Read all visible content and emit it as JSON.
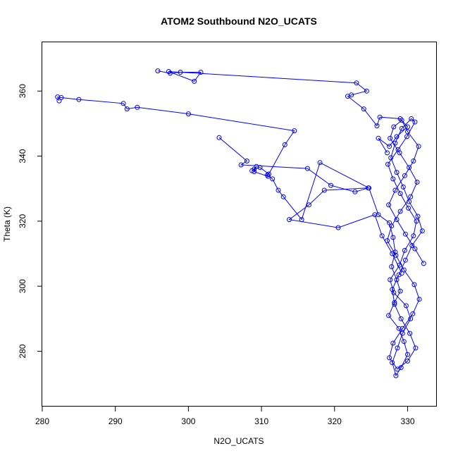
{
  "chart_data": {
    "type": "line",
    "title": "ATOM2 Southbound N2O_UCATS",
    "xlabel": "N2O_UCATS",
    "ylabel": "Theta (K)",
    "xlim": [
      280,
      334
    ],
    "ylim": [
      263,
      375
    ],
    "xticks": [
      280,
      290,
      300,
      310,
      320,
      330
    ],
    "yticks": [
      280,
      300,
      320,
      340,
      360
    ],
    "grid": false,
    "series_color": "#0000ff",
    "marker": "open-circle",
    "series": [
      {
        "x": [
          282.3,
          282.1,
          282.6,
          285.0,
          291.1,
          291.6,
          293.0,
          300.0,
          314.5,
          313.2,
          311.0,
          309.8,
          309.0,
          308.7,
          309.3,
          309.0,
          310.9,
          310.8,
          311.5,
          312.3,
          313.0,
          315.5,
          318.0,
          324.7,
          326.0,
          327.5,
          328.0,
          328.3,
          327.8,
          328.5,
          329.0,
          328.2,
          327.4,
          328.8,
          329.5,
          330.0,
          329.1,
          328.4,
          327.9,
          328.6,
          329.3,
          330.4,
          329.8,
          328.1,
          327.6,
          328.9,
          329.6,
          330.8,
          331.2,
          330.1,
          329.0,
          328.0,
          327.3,
          328.7,
          329.9,
          331.0,
          330.5,
          329.2,
          328.3,
          327.7,
          328.5,
          329.4,
          330.2,
          331.4,
          332.0,
          330.6,
          329.7,
          328.8,
          327.9,
          328.2,
          329.1,
          330.3,
          331.1,
          330.0,
          328.6,
          327.5,
          328.0,
          329.3,
          330.7,
          331.6,
          330.9,
          329.5,
          328.4,
          327.2,
          327.8,
          329.0,
          330.4,
          331.3,
          330.2,
          328.9,
          327.6,
          328.1,
          329.2,
          330.0,
          331.5,
          330.8,
          329.6,
          328.3,
          327.4,
          328.5,
          329.7,
          331.0,
          332.2
        ],
        "y": [
          357.0,
          358.2,
          358.0,
          357.4,
          356.2,
          354.5,
          355.0,
          353.0,
          347.8,
          343.5,
          334.5,
          336.5,
          336.0,
          335.5,
          336.8,
          335.2,
          333.8,
          334.2,
          333.0,
          329.5,
          327.5,
          320.5,
          338.0,
          330.2,
          322.0,
          319.5,
          315.0,
          310.5,
          306.0,
          302.0,
          298.5,
          295.0,
          291.0,
          287.0,
          283.0,
          279.0,
          275.0,
          272.5,
          276.5,
          281.0,
          285.5,
          290.0,
          294.0,
          298.0,
          302.0,
          306.5,
          311.0,
          315.5,
          320.0,
          324.0,
          328.5,
          333.0,
          337.5,
          342.0,
          346.0,
          350.5,
          351.5,
          348.5,
          344.0,
          339.5,
          335.0,
          330.5,
          326.0,
          321.5,
          317.0,
          312.5,
          308.0,
          303.5,
          299.0,
          294.5,
          290.0,
          285.5,
          281.0,
          277.0,
          274.5,
          278.0,
          282.5,
          287.0,
          291.5,
          296.0,
          300.5,
          305.0,
          309.5,
          314.0,
          318.5,
          323.0,
          327.5,
          332.0,
          336.5,
          341.0,
          345.5,
          349.0,
          351.0,
          347.5,
          343.0,
          338.5,
          334.0,
          329.5,
          325.0,
          320.5,
          316.0,
          311.5,
          307.0
        ]
      },
      {
        "x": [
          295.8,
          297.5,
          298.9,
          301.7,
          300.8,
          297.3,
          323.0,
          324.4,
          322.3,
          321.8,
          324.0,
          325.8,
          326.2,
          329.0,
          330.0,
          328.5,
          327.5,
          326.0,
          327.2
        ],
        "y": [
          366.2,
          365.5,
          365.8,
          365.8,
          363.0,
          366.0,
          362.5,
          360.0,
          358.8,
          358.4,
          354.5,
          349.3,
          352.0,
          351.5,
          349.0,
          346.0,
          343.0,
          345.5,
          341.0
        ]
      },
      {
        "x": [
          304.2,
          308.0,
          307.2,
          316.3,
          319.5,
          322.8,
          324.6,
          318.6,
          316.5,
          313.8,
          320.5,
          325.5,
          326.5,
          327.9,
          329.2
        ],
        "y": [
          345.7,
          338.5,
          337.3,
          336.2,
          331.0,
          329.0,
          330.2,
          329.5,
          325.0,
          320.5,
          318.0,
          322.0,
          315.5,
          310.0,
          304.0
        ]
      }
    ]
  }
}
